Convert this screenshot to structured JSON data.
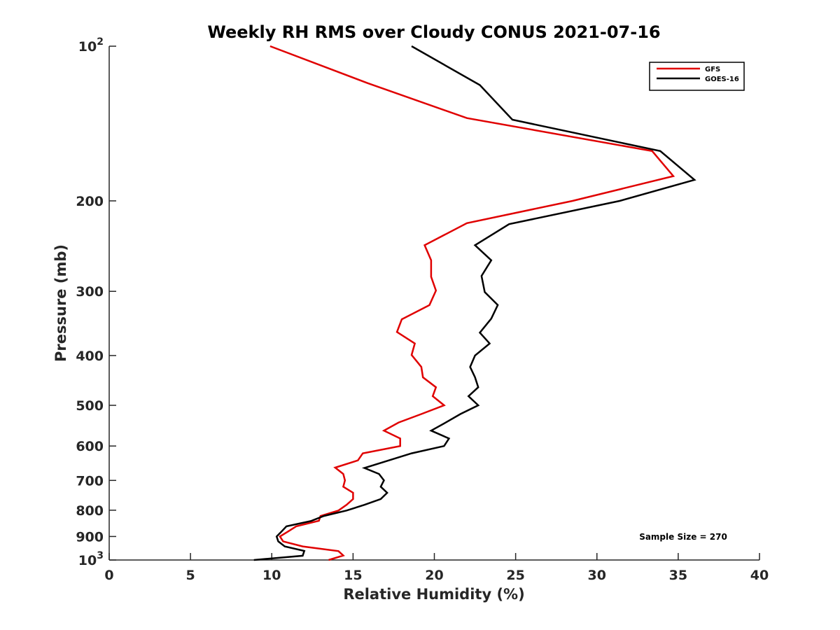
{
  "chart_data": {
    "type": "line",
    "title": "Weekly RH RMS over Cloudy CONUS 2021-07-16",
    "xlabel": "Relative Humidity (%)",
    "ylabel": "Pressure (mb)",
    "xlim": [
      0,
      40
    ],
    "ylim": [
      100,
      1000
    ],
    "y_scale": "log",
    "y_reversed": true,
    "grid": false,
    "legend_position": "top-right",
    "x_ticks": [
      0,
      5,
      10,
      15,
      20,
      25,
      30,
      35,
      40
    ],
    "y_ticks": [
      {
        "value": 100,
        "base": "10",
        "exp": "2"
      },
      {
        "value": 200,
        "label": "200"
      },
      {
        "value": 300,
        "label": "300"
      },
      {
        "value": 400,
        "label": "400"
      },
      {
        "value": 500,
        "label": "500"
      },
      {
        "value": 600,
        "label": "600"
      },
      {
        "value": 700,
        "label": "700"
      },
      {
        "value": 800,
        "label": "800"
      },
      {
        "value": 900,
        "label": "900"
      },
      {
        "value": 1000,
        "base": "10",
        "exp": "3"
      }
    ],
    "annotation": "Sample Size = 270",
    "series": [
      {
        "name": "GFS",
        "color": "#e00000",
        "points": [
          [
            9.9,
            100
          ],
          [
            15.9,
            118
          ],
          [
            22.0,
            138
          ],
          [
            33.4,
            160
          ],
          [
            34.7,
            179
          ],
          [
            28.5,
            200
          ],
          [
            22.0,
            221
          ],
          [
            19.4,
            244
          ],
          [
            19.8,
            261
          ],
          [
            19.8,
            281
          ],
          [
            20.1,
            299
          ],
          [
            19.7,
            319
          ],
          [
            18.0,
            340
          ],
          [
            17.7,
            360
          ],
          [
            18.8,
            379
          ],
          [
            18.6,
            399
          ],
          [
            19.2,
            421
          ],
          [
            19.3,
            441
          ],
          [
            20.1,
            461
          ],
          [
            19.9,
            480
          ],
          [
            20.6,
            500
          ],
          [
            19.2,
            520
          ],
          [
            17.8,
            540
          ],
          [
            16.9,
            560
          ],
          [
            17.9,
            580
          ],
          [
            17.9,
            600
          ],
          [
            15.6,
            620
          ],
          [
            15.3,
            640
          ],
          [
            13.9,
            661
          ],
          [
            14.4,
            680
          ],
          [
            14.5,
            700
          ],
          [
            14.4,
            720
          ],
          [
            15.0,
            740
          ],
          [
            15.0,
            761
          ],
          [
            14.6,
            781
          ],
          [
            14.1,
            801
          ],
          [
            13.0,
            821
          ],
          [
            12.9,
            839
          ],
          [
            11.5,
            860
          ],
          [
            11.0,
            880
          ],
          [
            10.5,
            900
          ],
          [
            10.7,
            920
          ],
          [
            11.9,
            941
          ],
          [
            14.1,
            961
          ],
          [
            14.4,
            980
          ],
          [
            13.5,
            1000
          ]
        ]
      },
      {
        "name": "GOES-16",
        "color": "#000000",
        "points": [
          [
            18.6,
            100
          ],
          [
            22.8,
            119
          ],
          [
            24.8,
            139
          ],
          [
            33.9,
            160
          ],
          [
            36.0,
            182
          ],
          [
            31.4,
            200
          ],
          [
            24.6,
            222
          ],
          [
            22.5,
            244
          ],
          [
            23.5,
            261
          ],
          [
            22.9,
            280
          ],
          [
            23.1,
            301
          ],
          [
            23.9,
            319
          ],
          [
            23.5,
            339
          ],
          [
            22.8,
            361
          ],
          [
            23.4,
            379
          ],
          [
            22.5,
            400
          ],
          [
            22.2,
            421
          ],
          [
            22.5,
            441
          ],
          [
            22.7,
            461
          ],
          [
            22.1,
            480
          ],
          [
            22.7,
            500
          ],
          [
            21.6,
            520
          ],
          [
            20.7,
            540
          ],
          [
            19.8,
            560
          ],
          [
            20.9,
            580
          ],
          [
            20.6,
            600
          ],
          [
            18.6,
            620
          ],
          [
            15.7,
            662
          ],
          [
            16.6,
            680
          ],
          [
            16.9,
            700
          ],
          [
            16.7,
            720
          ],
          [
            17.1,
            740
          ],
          [
            16.7,
            761
          ],
          [
            15.7,
            781
          ],
          [
            14.6,
            801
          ],
          [
            13.2,
            821
          ],
          [
            12.4,
            840
          ],
          [
            10.9,
            860
          ],
          [
            10.6,
            880
          ],
          [
            10.3,
            900
          ],
          [
            10.4,
            920
          ],
          [
            10.8,
            941
          ],
          [
            12.0,
            960
          ],
          [
            11.9,
            981
          ],
          [
            8.9,
            1000
          ]
        ]
      }
    ]
  }
}
